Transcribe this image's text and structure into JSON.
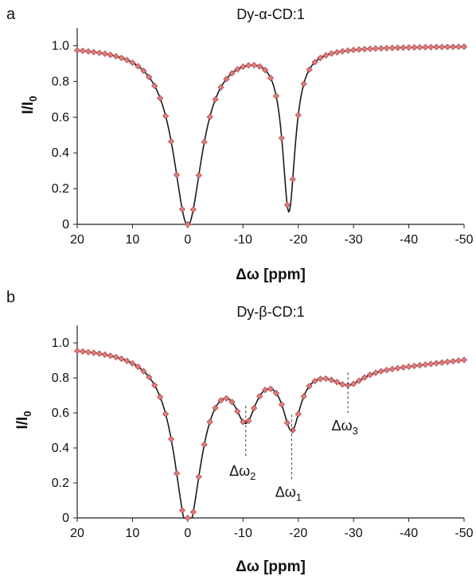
{
  "chart_data": [
    {
      "panel_label": "a",
      "type": "line",
      "title": "Dy-α-CD:1",
      "xlabel": "Δω [ppm]",
      "ylabel": {
        "main": "I/I",
        "sub": "0"
      },
      "xlim": [
        20,
        -50
      ],
      "ylim": [
        0,
        1.1
      ],
      "xticks": [
        20,
        10,
        0,
        -10,
        -20,
        -30,
        -40,
        -50
      ],
      "xtick_labels": [
        "20",
        "10",
        "0",
        "-10",
        "-20",
        "-30",
        "-40",
        "-50"
      ],
      "yticks": [
        0,
        0.2,
        0.4,
        0.6,
        0.8,
        1.0
      ],
      "ytick_labels": [
        "0",
        "0.2",
        "0.4",
        "0.6",
        "0.8",
        "1.0"
      ],
      "grid": false,
      "legend": "none",
      "colors": {
        "line": "#1a1a1a",
        "marker": "#e07b7b",
        "marker_edge": "#9b3b3b"
      },
      "baseline": 1.0,
      "dips": [
        {
          "x0": 0,
          "depth": 1.0,
          "width": 3.2
        },
        {
          "x0": -18.3,
          "depth": 0.9,
          "width": 1.4
        }
      ],
      "x_step": 1,
      "annotations": []
    },
    {
      "panel_label": "b",
      "type": "line",
      "title": "Dy-β-CD:1",
      "xlabel": "Δω [ppm]",
      "ylabel": {
        "main": "I/I",
        "sub": "0"
      },
      "xlim": [
        20,
        -50
      ],
      "ylim": [
        0,
        1.1
      ],
      "xticks": [
        20,
        10,
        0,
        -10,
        -20,
        -30,
        -40,
        -50
      ],
      "xtick_labels": [
        "20",
        "10",
        "0",
        "-10",
        "-20",
        "-30",
        "-40",
        "-50"
      ],
      "yticks": [
        0,
        0.2,
        0.4,
        0.6,
        0.8,
        1.0
      ],
      "ytick_labels": [
        "0",
        "0.2",
        "0.4",
        "0.6",
        "0.8",
        "1.0"
      ],
      "grid": false,
      "legend": "none",
      "colors": {
        "line": "#1a1a1a",
        "marker": "#e07b7b",
        "marker_edge": "#9b3b3b"
      },
      "baseline": 1.0,
      "dips": [
        {
          "x0": 0,
          "depth": 1.0,
          "width": 3.0
        },
        {
          "x0": -10.5,
          "depth": 0.3,
          "width": 2.4
        },
        {
          "x0": -18.8,
          "depth": 0.36,
          "width": 2.0
        },
        {
          "x0": -29,
          "depth": 0.1,
          "width": 3.6
        },
        {
          "x0": -35,
          "depth": 0.12,
          "width": 25
        }
      ],
      "x_step": 1,
      "annotations": [
        {
          "name": "annotation-dw2",
          "base": "Δω",
          "sub": "2",
          "x": -10.5,
          "line_from": 0.64,
          "line_to": 0.34
        },
        {
          "name": "annotation-dw1",
          "base": "Δω",
          "sub": "1",
          "x": -18.8,
          "line_from": 0.59,
          "line_to": 0.22
        },
        {
          "name": "annotation-dw3",
          "base": "Δω",
          "sub": "3",
          "x": -29,
          "line_from": 0.83,
          "line_to": 0.6
        }
      ]
    }
  ]
}
